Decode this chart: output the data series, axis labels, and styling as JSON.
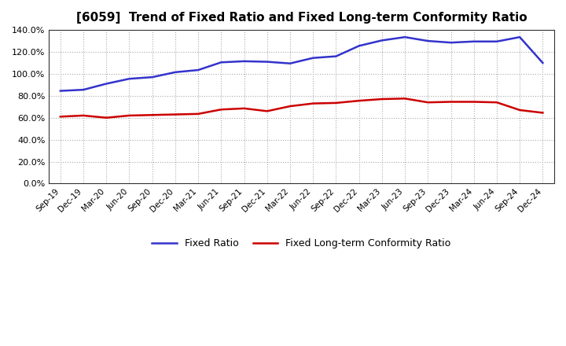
{
  "title": "[6059]  Trend of Fixed Ratio and Fixed Long-term Conformity Ratio",
  "x_labels": [
    "Sep-19",
    "Dec-19",
    "Mar-20",
    "Jun-20",
    "Sep-20",
    "Dec-20",
    "Mar-21",
    "Jun-21",
    "Sep-21",
    "Dec-21",
    "Mar-22",
    "Jun-22",
    "Sep-22",
    "Dec-22",
    "Mar-23",
    "Jun-23",
    "Sep-23",
    "Dec-23",
    "Mar-24",
    "Jun-24",
    "Sep-24",
    "Dec-24"
  ],
  "fixed_ratio": [
    84.5,
    85.5,
    91.0,
    95.5,
    97.0,
    101.5,
    103.5,
    110.5,
    111.5,
    111.0,
    109.5,
    114.5,
    116.0,
    125.5,
    130.5,
    133.5,
    130.0,
    128.5,
    129.5,
    129.5,
    133.5,
    110.0
  ],
  "fixed_lt_ratio": [
    61.0,
    62.0,
    60.0,
    62.0,
    62.5,
    63.0,
    63.5,
    67.5,
    68.5,
    66.0,
    70.5,
    73.0,
    73.5,
    75.5,
    77.0,
    77.5,
    74.0,
    74.5,
    74.5,
    74.0,
    67.0,
    64.5
  ],
  "fixed_ratio_color": "#3333cc",
  "fixed_lt_ratio_color": "#cc0000",
  "ylim": [
    0,
    140
  ],
  "yticks": [
    0,
    20,
    40,
    60,
    80,
    100,
    120,
    140
  ],
  "background_color": "#ffffff",
  "grid_color": "#aaaaaa",
  "legend_fixed": "Fixed Ratio",
  "legend_lt": "Fixed Long-term Conformity Ratio"
}
